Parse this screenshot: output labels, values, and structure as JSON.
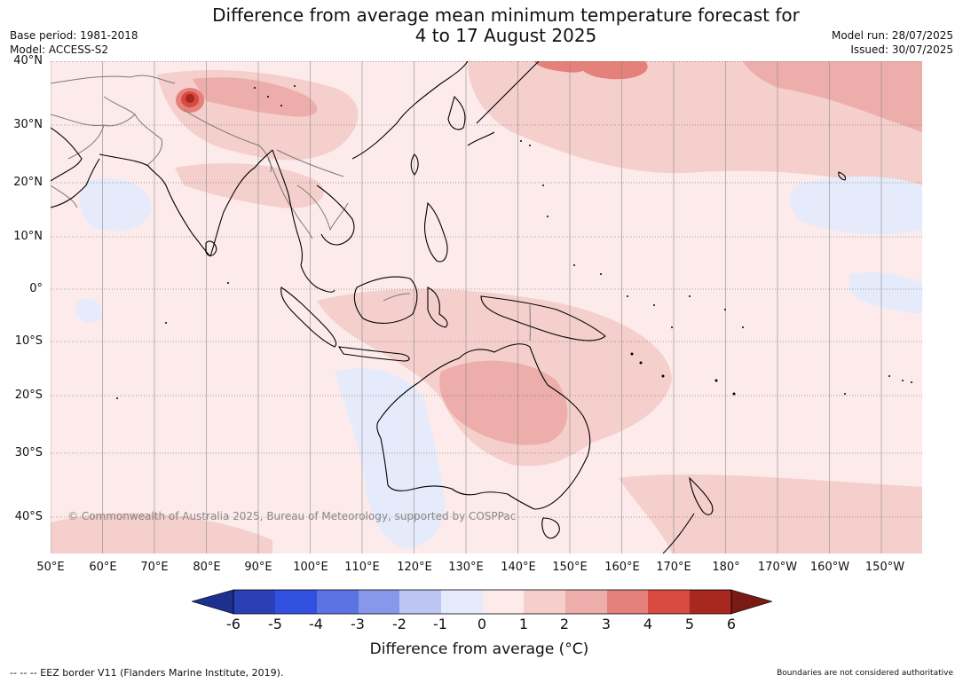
{
  "header": {
    "title_line1": "Difference from average mean minimum temperature forecast for",
    "title_line2": "4 to 17 August 2025",
    "base_period": "Base period: 1981-2018",
    "model": "Model: ACCESS-S2",
    "model_run": "Model run: 28/07/2025",
    "issued": "Issued: 30/07/2025"
  },
  "map": {
    "copyright": "© Commonwealth of Australia 2025, Bureau of Meteorology, supported by COSPPac",
    "lat_labels": [
      "40°N",
      "30°N",
      "20°N",
      "10°N",
      "0°",
      "10°S",
      "20°S",
      "30°S",
      "40°S"
    ],
    "lon_labels": [
      "50°E",
      "60°E",
      "70°E",
      "80°E",
      "90°E",
      "100°E",
      "110°E",
      "120°E",
      "130°E",
      "140°E",
      "150°E",
      "160°E",
      "170°E",
      "180°",
      "170°W",
      "160°W",
      "150°W"
    ],
    "land_outline_color": "#000000",
    "border_color": "#7a7a7a"
  },
  "legend": {
    "title": "Difference from average (°C)",
    "ticks": [
      "-6",
      "-5",
      "-4",
      "-3",
      "-2",
      "-1",
      "0",
      "1",
      "2",
      "3",
      "4",
      "5",
      "6"
    ],
    "colors": [
      "#1d2f8f",
      "#2a40b4",
      "#3250df",
      "#5b73e3",
      "#8797ea",
      "#bcc5f3",
      "#e6ebfb",
      "#fcebea",
      "#f4cfcc",
      "#edaeab",
      "#e5807a",
      "#d94a3f",
      "#a8271f",
      "#7a1a15"
    ]
  },
  "footer": {
    "eez_note": "-- -- -- EEZ border V11 (Flanders Marine Institute, 2019).",
    "boundaries_note": "Boundaries are not considered authoritative"
  }
}
